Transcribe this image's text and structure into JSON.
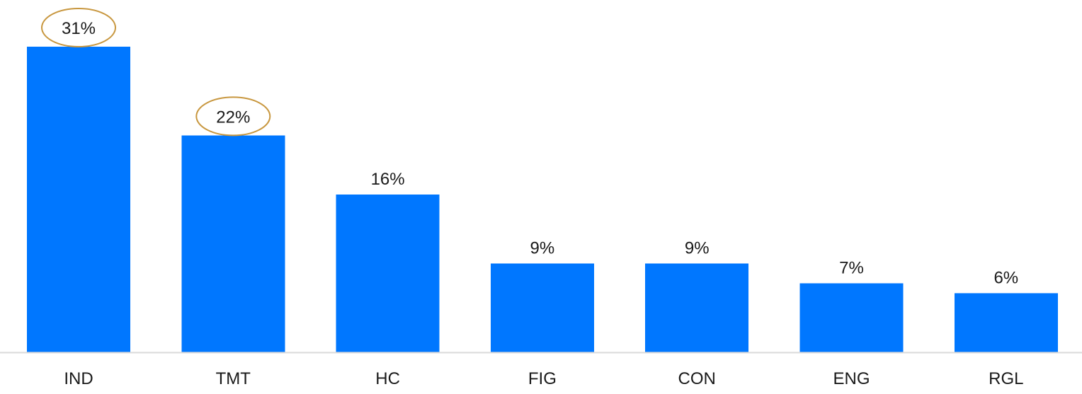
{
  "chart_data": {
    "type": "bar",
    "categories": [
      "IND",
      "TMT",
      "HC",
      "FIG",
      "CON",
      "ENG",
      "RGL"
    ],
    "values": [
      31,
      22,
      16,
      9,
      9,
      7,
      6
    ],
    "value_labels": [
      "31%",
      "22%",
      "16%",
      "9%",
      "9%",
      "7%",
      "6%"
    ],
    "highlighted": [
      "IND",
      "TMT"
    ],
    "title": "",
    "xlabel": "",
    "ylabel": "",
    "ylim": [
      0,
      31
    ],
    "grid": false,
    "legend": "none"
  },
  "colors": {
    "bar": "#0077ff",
    "highlight": "#c8973f",
    "baseline": "#d9d9d9"
  }
}
